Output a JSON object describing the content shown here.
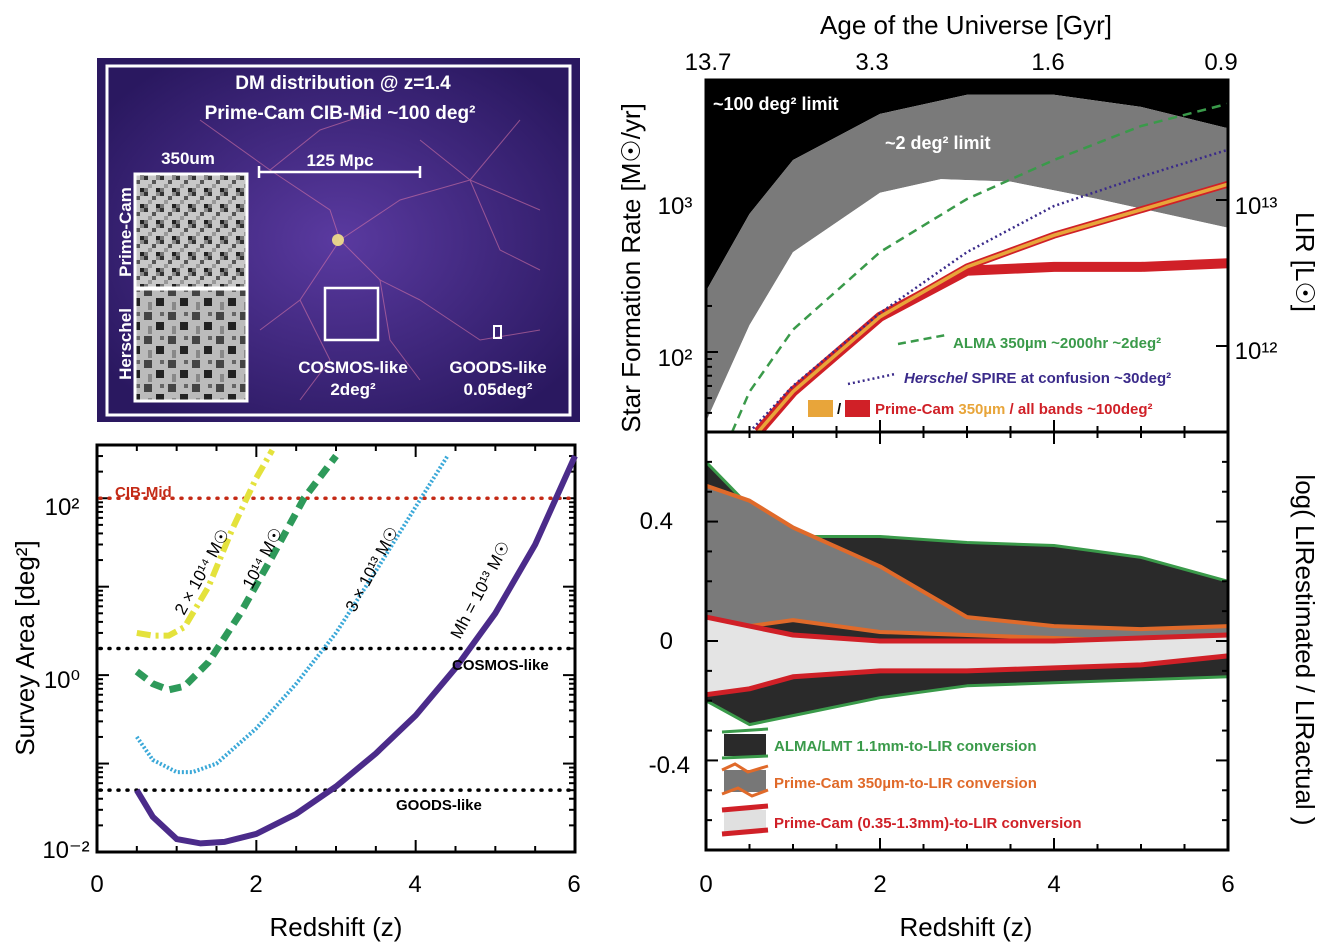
{
  "colors": {
    "alma": "#3a9a4a",
    "herschel": "#3a2a8a",
    "primecam_350": "#e8a53a",
    "primecam_all": "#d02027",
    "orange_edge": "#e06a2a",
    "halo_1e13": "#4b2b8a",
    "halo_3e13": "#3aa8d8",
    "halo_1e14": "#2e9a5a",
    "halo_2e14": "#e4e23c",
    "cib_mid": "#c42a16"
  },
  "panel_sim": {
    "title_line1": "DM distribution @ z=1.4",
    "title_line2": "Prime-Cam CIB-Mid  ~100 deg²",
    "wavelength": "350um",
    "scale_bar": "125 Mpc",
    "inset_top": "Prime-Cam",
    "inset_bottom": "Herschel",
    "cosmos_line1": "COSMOS-like",
    "cosmos_line2": "2deg²",
    "goods_line1": "GOODS-like",
    "goods_line2": "0.05deg²"
  },
  "panel_survey": {
    "ylabel": "Survey Area [deg²]",
    "xlabel": "Redshift (z)",
    "xticks": [
      "0",
      "2",
      "4",
      "6"
    ],
    "yticks": [
      "10²",
      "10⁰",
      "10⁻²"
    ],
    "lines": {
      "cib": "CIB-Mid",
      "cosmos": "COSMOS-like",
      "goods": "GOODS-like"
    },
    "curve_labels": [
      "2 × 10¹⁴ M☉",
      "10¹⁴ M☉",
      "3 × 10¹³ M☉",
      "Mh = 10¹³ M☉"
    ]
  },
  "panel_sfr": {
    "top_axis_label": "Age of the Universe [Gyr]",
    "top_ticks": [
      "13.7",
      "3.3",
      "1.6",
      "0.9"
    ],
    "ylabel": "Star Formation Rate [M☉/yr]",
    "right_label": "LIR  [L☉]",
    "yticks": [
      "10³",
      "10²"
    ],
    "right_ticks": [
      "10¹³",
      "10¹²"
    ],
    "limit_100": "~100 deg² limit",
    "limit_2": "~2 deg² limit",
    "legend_alma": "ALMA 350µm  ~2000hr  ~2deg²",
    "legend_herschel_a": "Herschel",
    "legend_herschel_b": " SPIRE at confusion ~30deg²",
    "legend_pc_slash": "/",
    "legend_pc_a": "Prime-Cam ",
    "legend_pc_b": "350µm",
    "legend_pc_c": " / all bands  ~100deg²"
  },
  "panel_lir": {
    "xlabel": "Redshift (z)",
    "xticks": [
      "0",
      "2",
      "4",
      "6"
    ],
    "yticks": [
      "0.4",
      "0",
      "-0.4"
    ],
    "right_label": "log( LIRestimated / LIRactual )",
    "legend": [
      "ALMA/LMT 1.1mm-to-LIR conversion",
      "Prime-Cam 350µm-to-LIR conversion",
      "Prime-Cam (0.35-1.3mm)-to-LIR conversion"
    ]
  },
  "chart_data": [
    {
      "type": "line",
      "xlabel": "Redshift (z)",
      "ylabel": "Survey Area [deg²]",
      "xlim": [
        0,
        6
      ],
      "ylim": [
        0.01,
        400
      ],
      "yscale": "log",
      "hlines": [
        {
          "name": "CIB-Mid",
          "y": 100
        },
        {
          "name": "COSMOS-like",
          "y": 2
        },
        {
          "name": "GOODS-like",
          "y": 0.05
        }
      ],
      "series": [
        {
          "name": "Mh = 10¹³ M☉",
          "x": [
            0.5,
            0.7,
            1.0,
            1.3,
            1.6,
            2.0,
            2.5,
            3.0,
            3.5,
            4.0,
            4.5,
            5.0,
            5.5,
            6.0
          ],
          "y": [
            0.05,
            0.025,
            0.014,
            0.0125,
            0.013,
            0.016,
            0.027,
            0.055,
            0.13,
            0.35,
            1.2,
            5,
            30,
            300
          ]
        },
        {
          "name": "3 × 10¹³ M☉",
          "x": [
            0.5,
            0.7,
            1.0,
            1.2,
            1.5,
            2.0,
            2.5,
            3.0,
            3.5,
            4.0,
            4.4
          ],
          "y": [
            0.2,
            0.11,
            0.08,
            0.08,
            0.1,
            0.25,
            0.8,
            3,
            15,
            80,
            300
          ]
        },
        {
          "name": "10¹⁴ M☉",
          "x": [
            0.5,
            0.7,
            0.9,
            1.1,
            1.4,
            1.8,
            2.2,
            2.6,
            3.0
          ],
          "y": [
            1.1,
            0.8,
            0.68,
            0.75,
            1.4,
            5,
            22,
            100,
            300
          ]
        },
        {
          "name": "2 × 10¹⁴ M☉",
          "x": [
            0.5,
            0.7,
            0.9,
            1.1,
            1.4,
            1.7,
            2.0,
            2.2
          ],
          "y": [
            3,
            2.8,
            2.8,
            3.5,
            10,
            45,
            170,
            350
          ]
        }
      ]
    },
    {
      "type": "area",
      "xlabel": "Redshift (z)",
      "ylabel": "Star Formation Rate [M☉/yr]",
      "xlim": [
        0,
        6
      ],
      "ylim": [
        30,
        6000
      ],
      "yscale": "log",
      "series": [
        {
          "name": "ALMA 350µm  ~2000hr  ~2deg²",
          "x": [
            0.3,
            0.5,
            1.0,
            2.0,
            3.0,
            4.0,
            5.0,
            6.0
          ],
          "y": [
            30,
            55,
            140,
            450,
            1000,
            1800,
            3000,
            4200
          ]
        },
        {
          "name": "Herschel SPIRE at confusion ~30deg²",
          "x": [
            0.5,
            1.0,
            2.0,
            3.0,
            4.0,
            5.0,
            6.0
          ],
          "y": [
            30,
            60,
            180,
            450,
            900,
            1400,
            2100
          ]
        },
        {
          "name": "Prime-Cam 350µm",
          "x": [
            0.6,
            1.0,
            2.0,
            3.0,
            4.0,
            5.0,
            6.0
          ],
          "y": [
            30,
            55,
            170,
            360,
            580,
            850,
            1250
          ]
        },
        {
          "name": "Prime-Cam all bands",
          "x": [
            0.6,
            1.0,
            2.0,
            3.0,
            4.0,
            5.0,
            6.0
          ],
          "y": [
            30,
            55,
            170,
            340,
            360,
            360,
            380
          ]
        },
        {
          "name": "~2 deg² limit",
          "x": [
            0.0,
            0.5,
            1.0,
            2.0,
            2.7,
            3.5,
            4.5,
            6.0
          ],
          "y": [
            35,
            150,
            450,
            1100,
            1350,
            1300,
            1000,
            650
          ]
        },
        {
          "name": "~100 deg² limit",
          "x": [
            0.0,
            0.5,
            1.0,
            2.0,
            3.0,
            4.0,
            5.0,
            6.0
          ],
          "y": [
            250,
            800,
            1800,
            3600,
            4800,
            4800,
            4000,
            2900
          ]
        }
      ]
    },
    {
      "type": "area",
      "xlabel": "Redshift (z)",
      "ylabel": "log( LIRestimated / LIRactual )",
      "xlim": [
        0,
        6
      ],
      "ylim": [
        -0.7,
        0.7
      ],
      "series": [
        {
          "name": "ALMA/LMT 1.1mm-to-LIR conversion upper",
          "x": [
            0,
            0.5,
            1,
            2,
            3,
            4,
            5,
            6
          ],
          "y": [
            0.6,
            0.45,
            0.35,
            0.35,
            0.33,
            0.32,
            0.28,
            0.2
          ]
        },
        {
          "name": "ALMA/LMT 1.1mm-to-LIR conversion lower",
          "x": [
            0,
            0.5,
            1,
            2,
            3,
            4,
            5,
            6
          ],
          "y": [
            -0.2,
            -0.28,
            -0.25,
            -0.19,
            -0.15,
            -0.14,
            -0.13,
            -0.12
          ]
        },
        {
          "name": "Prime-Cam 350µm-to-LIR conversion upper",
          "x": [
            0,
            0.5,
            1,
            2,
            3,
            4,
            5,
            6
          ],
          "y": [
            0.52,
            0.47,
            0.38,
            0.25,
            0.08,
            0.05,
            0.04,
            0.05
          ]
        },
        {
          "name": "Prime-Cam 350µm-to-LIR conversion lower",
          "x": [
            0,
            0.5,
            1,
            2,
            3,
            4,
            5,
            6
          ],
          "y": [
            -0.12,
            0.05,
            0.07,
            0.03,
            0.02,
            0.01,
            0.0,
            0.0
          ]
        },
        {
          "name": "Prime-Cam (0.35-1.3mm)-to-LIR conversion upper",
          "x": [
            0,
            0.5,
            1,
            2,
            3,
            4,
            5,
            6
          ],
          "y": [
            0.08,
            0.05,
            0.02,
            0.0,
            0.0,
            0.0,
            0.01,
            0.02
          ]
        },
        {
          "name": "Prime-Cam (0.35-1.3mm)-to-LIR conversion lower",
          "x": [
            0,
            0.5,
            1,
            2,
            3,
            4,
            5,
            6
          ],
          "y": [
            -0.18,
            -0.16,
            -0.12,
            -0.1,
            -0.1,
            -0.09,
            -0.08,
            -0.05
          ]
        }
      ]
    }
  ]
}
